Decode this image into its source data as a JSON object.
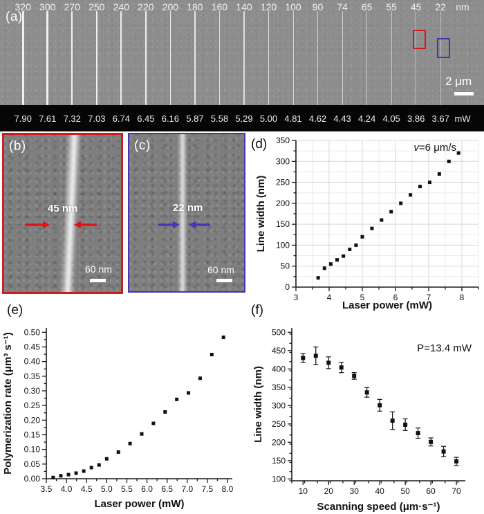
{
  "figure": {
    "panel_a": {
      "label": "(a)",
      "top_unit": "nm",
      "bottom_unit": "mW",
      "line_widths_nm": [
        "320",
        "300",
        "270",
        "250",
        "240",
        "220",
        "200",
        "180",
        "160",
        "140",
        "120",
        "100",
        "90",
        "74",
        "65",
        "55",
        "45",
        "22"
      ],
      "laser_powers_mw": [
        "7.90",
        "7.61",
        "7.32",
        "7.03",
        "6.74",
        "6.45",
        "6.16",
        "5.87",
        "5.58",
        "5.29",
        "5.00",
        "4.81",
        "4.62",
        "4.43",
        "4.24",
        "4.05",
        "3.86",
        "3.67"
      ],
      "scale_bar_label": "2 μm",
      "highlight_box_colors": [
        "#cf1d1d",
        "#4136ae"
      ]
    },
    "panel_b": {
      "label": "(b)",
      "measurement": "45 nm",
      "scale_bar_label": "60 nm",
      "border_color": "#cf1d1d",
      "arrow_color": "#e31313"
    },
    "panel_c": {
      "label": "(c)",
      "measurement": "22 nm",
      "scale_bar_label": "60 nm",
      "border_color": "#4136ae",
      "arrow_color": "#4538b6"
    }
  },
  "chart_data": [
    {
      "id": "d",
      "panel_label": "(d)",
      "type": "scatter",
      "xlabel": "Laser power (mW)",
      "ylabel": "Line width (nm)",
      "annotation": {
        "italic": "v",
        "text": "=6 μm/s"
      },
      "xlim": [
        3,
        8.5
      ],
      "ylim": [
        0,
        350
      ],
      "xticks": [
        3,
        4,
        5,
        6,
        7,
        8
      ],
      "xtick_labels": [
        "3",
        "4",
        "5",
        "6",
        "7",
        "8"
      ],
      "yticks": [
        0,
        50,
        100,
        150,
        200,
        250,
        300,
        350
      ],
      "ytick_labels": [
        "0",
        "50",
        "100",
        "150",
        "200",
        "250",
        "300",
        "350"
      ],
      "xminor": 0.5,
      "yminor": 25,
      "grid": true,
      "x": [
        3.67,
        3.86,
        4.05,
        4.24,
        4.43,
        4.62,
        4.81,
        5.0,
        5.29,
        5.58,
        5.87,
        6.16,
        6.45,
        6.74,
        7.03,
        7.32,
        7.61,
        7.9
      ],
      "y": [
        22,
        45,
        55,
        65,
        74,
        90,
        100,
        120,
        140,
        160,
        180,
        200,
        220,
        240,
        250,
        270,
        300,
        320
      ]
    },
    {
      "id": "e",
      "panel_label": "(e)",
      "type": "scatter",
      "xlabel": "Laser power (mW)",
      "ylabel": "Polymerization rate (μm³ s⁻¹)",
      "annotation": null,
      "xlim": [
        3.5,
        8.12
      ],
      "ylim": [
        0,
        0.515
      ],
      "xticks": [
        3.5,
        4.0,
        4.5,
        5.0,
        5.5,
        6.0,
        6.5,
        7.0,
        7.5,
        8.0
      ],
      "xtick_labels": [
        "3.5",
        "4.0",
        "4.5",
        "5.0",
        "5.5",
        "6.0",
        "6.5",
        "7.0",
        "7.5",
        "8.0"
      ],
      "yticks": [
        0,
        0.05,
        0.1,
        0.15,
        0.2,
        0.25,
        0.3,
        0.35,
        0.4,
        0.45,
        0.5
      ],
      "ytick_labels": [
        "0.00",
        "0.05",
        "0.10",
        "0.15",
        "0.20",
        "0.25",
        "0.30",
        "0.35",
        "0.40",
        "0.45",
        "0.50"
      ],
      "xminor": 0.25,
      "yminor": 0.025,
      "grid": false,
      "x": [
        3.67,
        3.86,
        4.05,
        4.24,
        4.43,
        4.62,
        4.81,
        5.0,
        5.29,
        5.58,
        5.87,
        6.16,
        6.45,
        6.74,
        7.03,
        7.32,
        7.61,
        7.9
      ],
      "y": [
        0.004,
        0.01,
        0.014,
        0.019,
        0.026,
        0.038,
        0.047,
        0.068,
        0.091,
        0.12,
        0.153,
        0.189,
        0.228,
        0.271,
        0.293,
        0.343,
        0.424,
        0.483
      ]
    },
    {
      "id": "f",
      "panel_label": "(f)",
      "type": "scatter",
      "xlabel": "Scanning speed (μm·s⁻¹)",
      "ylabel": "Line width (nm)",
      "annotation": {
        "italic": "",
        "text": "P=13.4 mW"
      },
      "xlim": [
        5.6,
        73.5
      ],
      "ylim": [
        95,
        512
      ],
      "xticks": [
        10,
        20,
        30,
        40,
        50,
        60,
        70
      ],
      "xtick_labels": [
        "10",
        "20",
        "30",
        "40",
        "50",
        "60",
        "70"
      ],
      "yticks": [
        100,
        150,
        200,
        250,
        300,
        350,
        400,
        450,
        500
      ],
      "ytick_labels": [
        "100",
        "150",
        "200",
        "250",
        "300",
        "350",
        "400",
        "450",
        "500"
      ],
      "xminor": 5,
      "yminor": 25,
      "grid": false,
      "x": [
        10,
        15,
        20,
        25,
        30,
        35,
        40,
        45,
        50,
        55,
        60,
        65,
        70
      ],
      "y": [
        430,
        436,
        417,
        404,
        381,
        336,
        301,
        259,
        248,
        225,
        201,
        175,
        148
      ],
      "yerr": [
        12,
        24,
        16,
        14,
        9,
        13,
        16,
        24,
        16,
        14,
        11,
        14,
        11
      ]
    }
  ]
}
